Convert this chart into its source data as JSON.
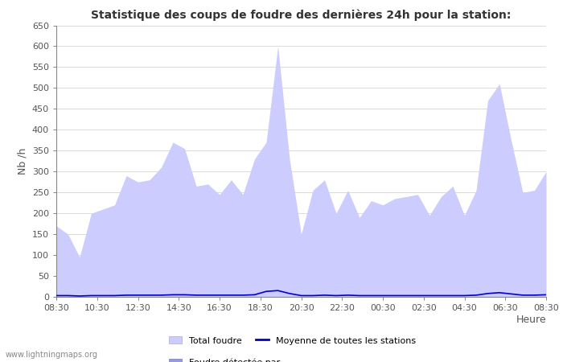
{
  "title": "Statistique des coups de foudre des dernières 24h pour la station:",
  "ylabel": "Nb /h",
  "xlabel": "Heure",
  "ylim": [
    0,
    650
  ],
  "yticks": [
    0,
    50,
    100,
    150,
    200,
    250,
    300,
    350,
    400,
    450,
    500,
    550,
    600,
    650
  ],
  "x_labels": [
    "08:30",
    "10:30",
    "12:30",
    "14:30",
    "16:30",
    "18:30",
    "20:30",
    "22:30",
    "00:30",
    "02:30",
    "04:30",
    "06:30",
    "08:30"
  ],
  "total_foudre_color": "#ccccff",
  "foudre_detectee_color": "#9999dd",
  "moyenne_color": "#0000cc",
  "grid_color": "#cccccc",
  "tick_color": "#555555",
  "background_color": "#ffffff",
  "watermark": "www.lightningmaps.org",
  "total_foudre_y": [
    170,
    150,
    95,
    200,
    210,
    220,
    290,
    275,
    280,
    310,
    370,
    355,
    265,
    270,
    245,
    280,
    245,
    330,
    370,
    600,
    330,
    150,
    255,
    280,
    200,
    255,
    190,
    230,
    220,
    235,
    240,
    245,
    195,
    240,
    265,
    195,
    255,
    470,
    510,
    375,
    250,
    255,
    300
  ],
  "moyenne_y": [
    3,
    3,
    2,
    3,
    3,
    3,
    4,
    4,
    4,
    4,
    5,
    5,
    4,
    4,
    4,
    4,
    4,
    5,
    13,
    15,
    8,
    3,
    3,
    4,
    3,
    4,
    3,
    3,
    3,
    3,
    3,
    3,
    3,
    3,
    3,
    3,
    4,
    8,
    10,
    7,
    4,
    4,
    5
  ]
}
